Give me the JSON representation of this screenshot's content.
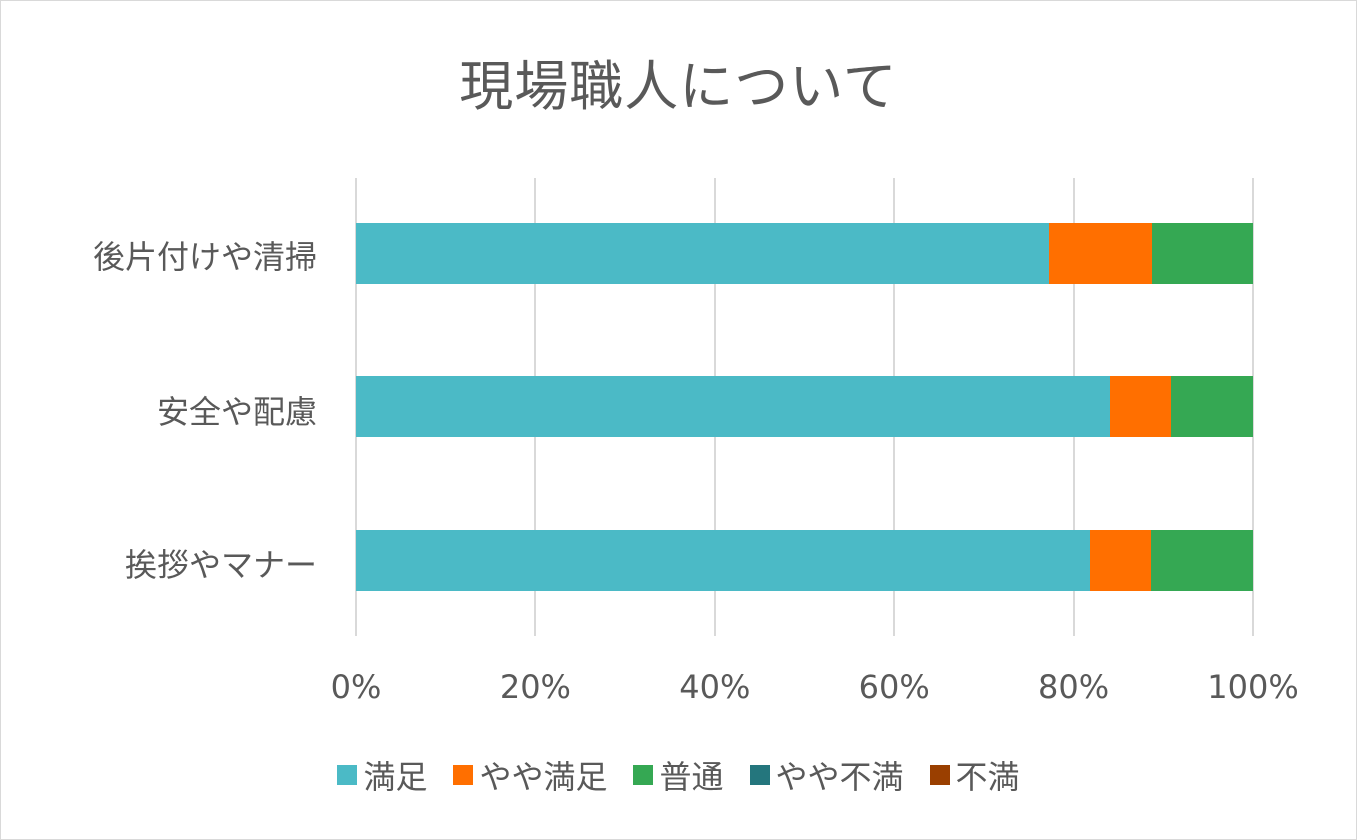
{
  "title": "現場職人について",
  "chart_data": {
    "type": "bar",
    "orientation": "horizontal",
    "stacked": "percent",
    "title": "現場職人について",
    "xlabel": "",
    "ylabel": "",
    "xlim": [
      0,
      100
    ],
    "grid": true,
    "legend_position": "bottom",
    "categories": [
      "後片付けや清掃",
      "安全や配慮",
      "挨拶やマナー"
    ],
    "x_ticks": [
      "0%",
      "20%",
      "40%",
      "60%",
      "80%",
      "100%"
    ],
    "series": [
      {
        "name": "満足",
        "color": "#4bbac6",
        "values": [
          77.3,
          84.1,
          81.8
        ]
      },
      {
        "name": "やや満足",
        "color": "#ff6f00",
        "values": [
          11.4,
          6.8,
          6.8
        ]
      },
      {
        "name": "普通",
        "color": "#35a853",
        "values": [
          11.3,
          9.1,
          11.4
        ]
      },
      {
        "name": "やや不満",
        "color": "#24767d",
        "values": [
          0,
          0,
          0
        ]
      },
      {
        "name": "不満",
        "color": "#9a3f00",
        "values": [
          0,
          0,
          0
        ]
      }
    ]
  }
}
